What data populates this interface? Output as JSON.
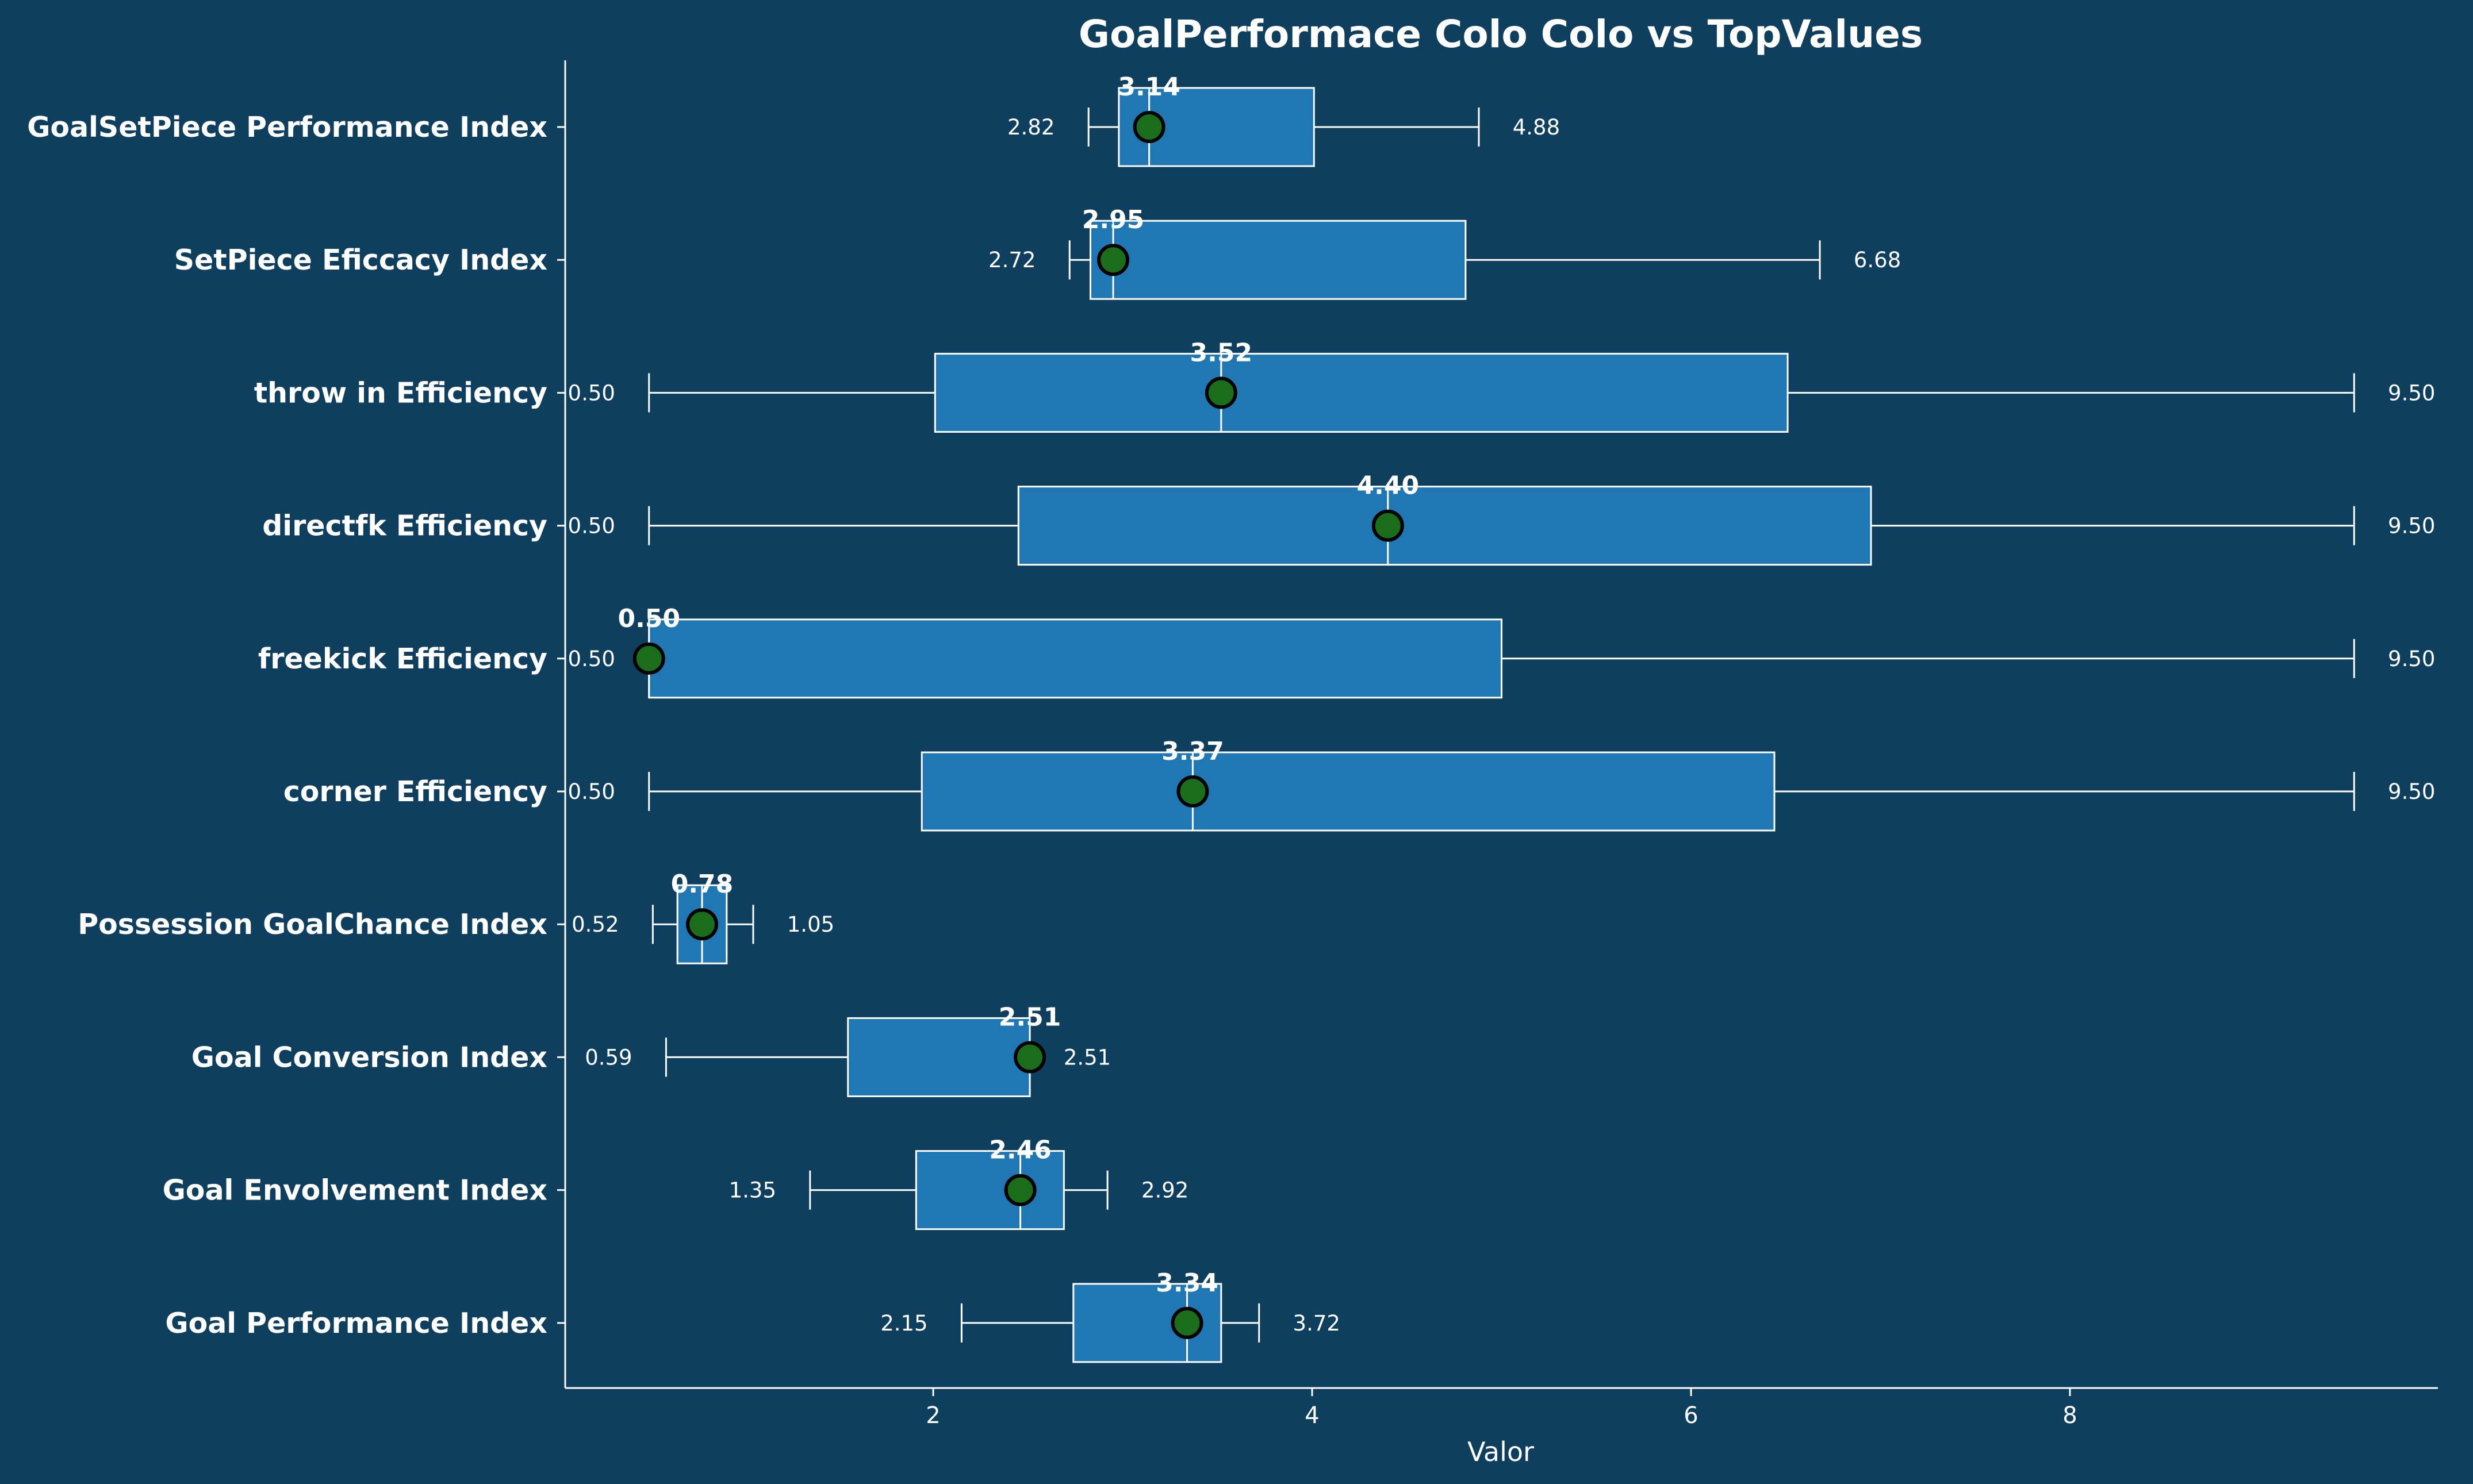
{
  "chart_data": {
    "type": "boxplot",
    "title": "GoalPerformace Colo Colo vs TopValues",
    "xlabel": "Valor",
    "ylabel": "",
    "xlim": [
      0.05,
      9.8
    ],
    "xticks": [
      2,
      4,
      6,
      8
    ],
    "grid": false,
    "colors": {
      "background": "#0f3f5f",
      "box_fill": "#1f77b4",
      "box_edge": "#ffffff",
      "marker_fill": "#1a6e1a",
      "marker_edge": "#000000",
      "text": "#ffffff"
    },
    "categories": [
      "Goal Performance Index",
      "Goal Envolvement Index",
      "Goal Conversion Index",
      "Possession GoalChance Index",
      "corner Efficiency",
      "freekick Efficiency",
      "directfk Efficiency",
      "throw in Efficiency",
      "SetPiece Eficcacy Index",
      "GoalSetPiece Performance Index"
    ],
    "boxes": [
      {
        "min": 2.15,
        "q1": 2.74,
        "median": 3.34,
        "q3": 3.52,
        "max": 3.72,
        "min_label": "2.15",
        "max_label": "3.72"
      },
      {
        "min": 1.35,
        "q1": 1.91,
        "median": 2.46,
        "q3": 2.69,
        "max": 2.92,
        "min_label": "1.35",
        "max_label": "2.92"
      },
      {
        "min": 0.59,
        "q1": 1.55,
        "median": 2.51,
        "q3": 2.51,
        "max": 2.51,
        "min_label": "0.59",
        "max_label": "2.51"
      },
      {
        "min": 0.52,
        "q1": 0.65,
        "median": 0.78,
        "q3": 0.91,
        "max": 1.05,
        "min_label": "0.52",
        "max_label": "1.05"
      },
      {
        "min": 0.5,
        "q1": 1.94,
        "median": 3.37,
        "q3": 6.44,
        "max": 9.5,
        "min_label": "0.50",
        "max_label": "9.50"
      },
      {
        "min": 0.5,
        "q1": 0.5,
        "median": 0.5,
        "q3": 5.0,
        "max": 9.5,
        "min_label": "0.50",
        "max_label": "9.50"
      },
      {
        "min": 0.5,
        "q1": 2.45,
        "median": 4.4,
        "q3": 6.95,
        "max": 9.5,
        "min_label": "0.50",
        "max_label": "9.50"
      },
      {
        "min": 0.5,
        "q1": 2.01,
        "median": 3.52,
        "q3": 6.51,
        "max": 9.5,
        "min_label": "0.50",
        "max_label": "9.50"
      },
      {
        "min": 2.72,
        "q1": 2.83,
        "median": 2.95,
        "q3": 4.81,
        "max": 6.68,
        "min_label": "2.72",
        "max_label": "6.68"
      },
      {
        "min": 2.82,
        "q1": 2.98,
        "median": 3.14,
        "q3": 4.01,
        "max": 4.88,
        "min_label": "2.82",
        "max_label": "4.88"
      }
    ],
    "markers": [
      {
        "value": 3.34,
        "label": "3.34"
      },
      {
        "value": 2.46,
        "label": "2.46"
      },
      {
        "value": 2.51,
        "label": "2.51"
      },
      {
        "value": 0.78,
        "label": "0.78"
      },
      {
        "value": 3.37,
        "label": "3.37"
      },
      {
        "value": 0.5,
        "label": "0.50"
      },
      {
        "value": 4.4,
        "label": "4.40"
      },
      {
        "value": 3.52,
        "label": "3.52"
      },
      {
        "value": 2.95,
        "label": "2.95"
      },
      {
        "value": 3.14,
        "label": "3.14"
      }
    ]
  }
}
